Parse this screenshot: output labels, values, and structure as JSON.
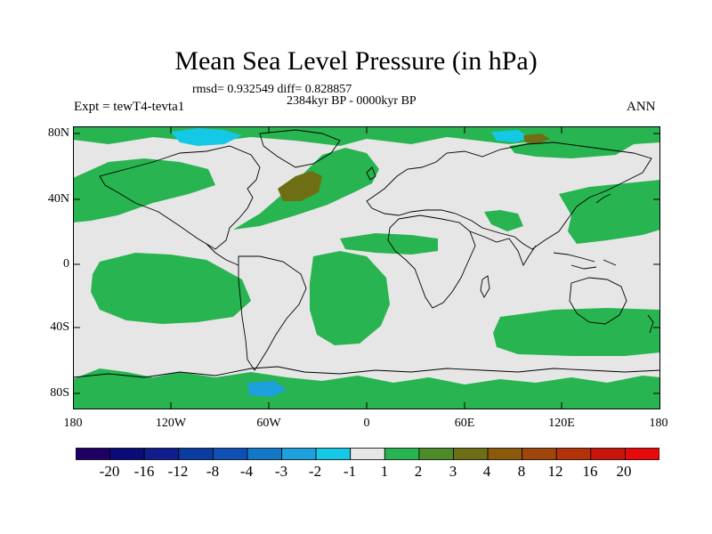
{
  "title": "Mean Sea Level Pressure (in hPa)",
  "stats": "rmsd= 0.932549 diff= 0.828857",
  "period": "2384kyr BP - 0000kyr BP",
  "expt": "Expt = tewT4-tevta1",
  "season": "ANN",
  "map": {
    "lat_labels": [
      "80N",
      "40N",
      "0",
      "40S",
      "80S"
    ],
    "lon_labels": [
      "180",
      "120W",
      "60W",
      "0",
      "60E",
      "120E",
      "180"
    ],
    "ocean_color": "#e6e6e6",
    "coast_color": "#000000"
  },
  "colorbar": {
    "colors": [
      "#1e0064",
      "#0a0a78",
      "#0f1e8c",
      "#0a3ca0",
      "#0f50b4",
      "#1478c8",
      "#1ea0dc",
      "#14c8e6",
      "#e6e6e6",
      "#28b450",
      "#4b8c28",
      "#6e6e14",
      "#8c5a0a",
      "#a0460a",
      "#b4320a",
      "#c8140a",
      "#e60a0a"
    ],
    "labels": [
      "-20",
      "-16",
      "-12",
      "-8",
      "-4",
      "-3",
      "-2",
      "-1",
      "1",
      "2",
      "3",
      "4",
      "8",
      "12",
      "16",
      "20"
    ],
    "highlight": "#28b450",
    "dark_positive": "#6e6e14",
    "cyan_negative": "#14c8e6",
    "blue_negative": "#1ea0dc"
  }
}
